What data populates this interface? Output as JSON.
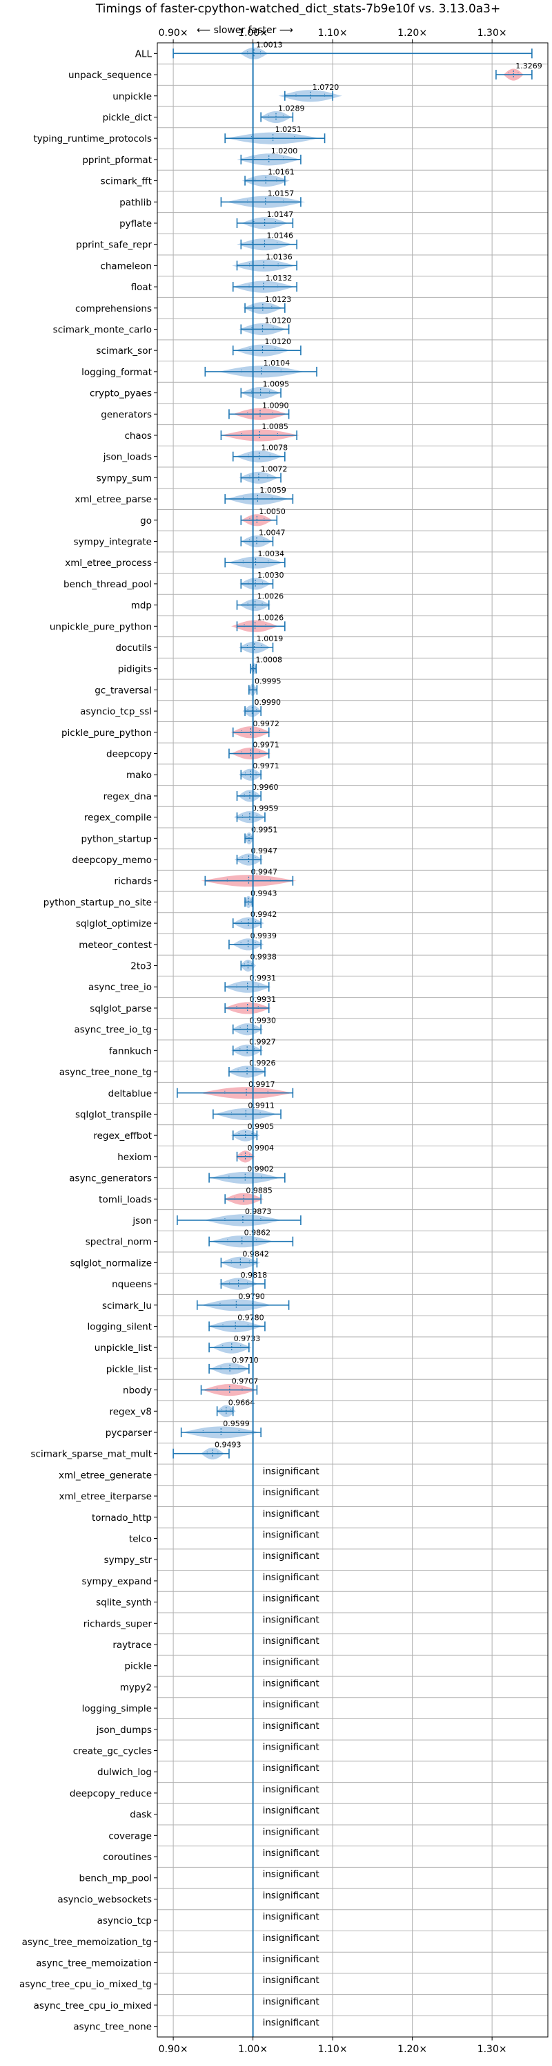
{
  "chart_data": {
    "type": "violin",
    "title": "Timings of faster-cpython-watched_dict_stats-7b9e10f vs. 3.13.0a3+",
    "direction_label": "⟵ slower  faster ⟶",
    "x_ticks": [
      "0.90×",
      "1.00×",
      "1.10×",
      "1.20×",
      "1.30×"
    ],
    "x_tick_values": [
      0.9,
      1.0,
      1.1,
      1.2,
      1.3
    ],
    "xlim": [
      0.88,
      1.37
    ],
    "reference_line": 1.0,
    "insignificant_label": "insignificant",
    "colors": {
      "faster": "#a9c9e8",
      "slower": "#f4a8b0",
      "accent": "#1f77b4"
    },
    "benchmarks": [
      {
        "name": "ALL",
        "value": 1.0013,
        "label": "1.0013",
        "lo": 0.9,
        "hi": 1.35,
        "w": 0.018,
        "color": "faster"
      },
      {
        "name": "unpack_sequence",
        "value": 1.3269,
        "label": "1.3269",
        "lo": 1.305,
        "hi": 1.35,
        "w": 0.013,
        "color": "slower"
      },
      {
        "name": "unpickle",
        "value": 1.072,
        "label": "1.0720",
        "lo": 1.04,
        "hi": 1.1,
        "w": 0.04,
        "color": "faster"
      },
      {
        "name": "pickle_dict",
        "value": 1.0289,
        "label": "1.0289",
        "lo": 1.01,
        "hi": 1.05,
        "w": 0.02,
        "color": "faster"
      },
      {
        "name": "typing_runtime_protocols",
        "value": 1.0251,
        "label": "1.0251",
        "lo": 0.965,
        "hi": 1.09,
        "w": 0.06,
        "color": "faster"
      },
      {
        "name": "pprint_pformat",
        "value": 1.02,
        "label": "1.0200",
        "lo": 0.985,
        "hi": 1.06,
        "w": 0.04,
        "color": "faster"
      },
      {
        "name": "scimark_fft",
        "value": 1.0161,
        "label": "1.0161",
        "lo": 0.99,
        "hi": 1.04,
        "w": 0.03,
        "color": "faster"
      },
      {
        "name": "pathlib",
        "value": 1.0157,
        "label": "1.0157",
        "lo": 0.96,
        "hi": 1.06,
        "w": 0.05,
        "color": "faster"
      },
      {
        "name": "pyflate",
        "value": 1.0147,
        "label": "1.0147",
        "lo": 0.98,
        "hi": 1.05,
        "w": 0.03,
        "color": "faster"
      },
      {
        "name": "pprint_safe_repr",
        "value": 1.0146,
        "label": "1.0146",
        "lo": 0.985,
        "hi": 1.055,
        "w": 0.035,
        "color": "faster"
      },
      {
        "name": "chameleon",
        "value": 1.0136,
        "label": "1.0136",
        "lo": 0.98,
        "hi": 1.055,
        "w": 0.04,
        "color": "faster"
      },
      {
        "name": "float",
        "value": 1.0132,
        "label": "1.0132",
        "lo": 0.975,
        "hi": 1.055,
        "w": 0.04,
        "color": "faster"
      },
      {
        "name": "comprehensions",
        "value": 1.0123,
        "label": "1.0123",
        "lo": 0.99,
        "hi": 1.04,
        "w": 0.025,
        "color": "faster"
      },
      {
        "name": "scimark_monte_carlo",
        "value": 1.012,
        "label": "1.0120",
        "lo": 0.985,
        "hi": 1.045,
        "w": 0.03,
        "color": "faster"
      },
      {
        "name": "scimark_sor",
        "value": 1.012,
        "label": "1.0120",
        "lo": 0.975,
        "hi": 1.06,
        "w": 0.035,
        "color": "faster"
      },
      {
        "name": "logging_format",
        "value": 1.0104,
        "label": "1.0104",
        "lo": 0.94,
        "hi": 1.08,
        "w": 0.055,
        "color": "faster"
      },
      {
        "name": "crypto_pyaes",
        "value": 1.0095,
        "label": "1.0095",
        "lo": 0.985,
        "hi": 1.035,
        "w": 0.025,
        "color": "faster"
      },
      {
        "name": "generators",
        "value": 1.009,
        "label": "1.0090",
        "lo": 0.97,
        "hi": 1.045,
        "w": 0.035,
        "color": "slower"
      },
      {
        "name": "chaos",
        "value": 1.0085,
        "label": "1.0085",
        "lo": 0.96,
        "hi": 1.055,
        "w": 0.05,
        "color": "slower"
      },
      {
        "name": "json_loads",
        "value": 1.0078,
        "label": "1.0078",
        "lo": 0.975,
        "hi": 1.04,
        "w": 0.03,
        "color": "faster"
      },
      {
        "name": "sympy_sum",
        "value": 1.0072,
        "label": "1.0072",
        "lo": 0.985,
        "hi": 1.035,
        "w": 0.025,
        "color": "faster"
      },
      {
        "name": "xml_etree_parse",
        "value": 1.0059,
        "label": "1.0059",
        "lo": 0.965,
        "hi": 1.05,
        "w": 0.04,
        "color": "faster"
      },
      {
        "name": "go",
        "value": 1.005,
        "label": "1.0050",
        "lo": 0.985,
        "hi": 1.03,
        "w": 0.02,
        "color": "slower"
      },
      {
        "name": "sympy_integrate",
        "value": 1.0047,
        "label": "1.0047",
        "lo": 0.985,
        "hi": 1.025,
        "w": 0.02,
        "color": "faster"
      },
      {
        "name": "xml_etree_process",
        "value": 1.0034,
        "label": "1.0034",
        "lo": 0.965,
        "hi": 1.04,
        "w": 0.035,
        "color": "faster"
      },
      {
        "name": "bench_thread_pool",
        "value": 1.003,
        "label": "1.0030",
        "lo": 0.985,
        "hi": 1.025,
        "w": 0.02,
        "color": "faster"
      },
      {
        "name": "mdp",
        "value": 1.0026,
        "label": "1.0026",
        "lo": 0.98,
        "hi": 1.02,
        "w": 0.02,
        "color": "faster"
      },
      {
        "name": "unpickle_pure_python",
        "value": 1.0026,
        "label": "1.0026",
        "lo": 0.98,
        "hi": 1.04,
        "w": 0.03,
        "color": "slower"
      },
      {
        "name": "docutils",
        "value": 1.0019,
        "label": "1.0019",
        "lo": 0.985,
        "hi": 1.025,
        "w": 0.02,
        "color": "faster"
      },
      {
        "name": "pidigits",
        "value": 1.0008,
        "label": "1.0008",
        "lo": 0.997,
        "hi": 1.004,
        "w": 0.004,
        "color": "faster"
      },
      {
        "name": "gc_traversal",
        "value": 0.9995,
        "label": "0.9995",
        "lo": 0.995,
        "hi": 1.005,
        "w": 0.006,
        "color": "faster"
      },
      {
        "name": "asyncio_tcp_ssl",
        "value": 0.999,
        "label": "0.9990",
        "lo": 0.99,
        "hi": 1.01,
        "w": 0.012,
        "color": "faster"
      },
      {
        "name": "pickle_pure_python",
        "value": 0.9972,
        "label": "0.9972",
        "lo": 0.975,
        "hi": 1.02,
        "w": 0.025,
        "color": "slower"
      },
      {
        "name": "deepcopy",
        "value": 0.9971,
        "label": "0.9971",
        "lo": 0.97,
        "hi": 1.02,
        "w": 0.025,
        "color": "slower"
      },
      {
        "name": "mako",
        "value": 0.9971,
        "label": "0.9971",
        "lo": 0.985,
        "hi": 1.01,
        "w": 0.015,
        "color": "faster"
      },
      {
        "name": "regex_dna",
        "value": 0.996,
        "label": "0.9960",
        "lo": 0.98,
        "hi": 1.01,
        "w": 0.015,
        "color": "faster"
      },
      {
        "name": "regex_compile",
        "value": 0.9959,
        "label": "0.9959",
        "lo": 0.98,
        "hi": 1.015,
        "w": 0.02,
        "color": "faster"
      },
      {
        "name": "python_startup",
        "value": 0.9951,
        "label": "0.9951",
        "lo": 0.99,
        "hi": 1.0,
        "w": 0.006,
        "color": "faster"
      },
      {
        "name": "deepcopy_memo",
        "value": 0.9947,
        "label": "0.9947",
        "lo": 0.98,
        "hi": 1.01,
        "w": 0.018,
        "color": "faster"
      },
      {
        "name": "richards",
        "value": 0.9947,
        "label": "0.9947",
        "lo": 0.94,
        "hi": 1.05,
        "w": 0.06,
        "color": "slower"
      },
      {
        "name": "python_startup_no_site",
        "value": 0.9943,
        "label": "0.9943",
        "lo": 0.99,
        "hi": 0.999,
        "w": 0.006,
        "color": "faster"
      },
      {
        "name": "sqlglot_optimize",
        "value": 0.9942,
        "label": "0.9942",
        "lo": 0.975,
        "hi": 1.01,
        "w": 0.02,
        "color": "faster"
      },
      {
        "name": "meteor_contest",
        "value": 0.9939,
        "label": "0.9939",
        "lo": 0.97,
        "hi": 1.01,
        "w": 0.02,
        "color": "faster"
      },
      {
        "name": "2to3",
        "value": 0.9938,
        "label": "0.9938",
        "lo": 0.985,
        "hi": 1.0,
        "w": 0.01,
        "color": "faster"
      },
      {
        "name": "async_tree_io",
        "value": 0.9931,
        "label": "0.9931",
        "lo": 0.965,
        "hi": 1.02,
        "w": 0.03,
        "color": "faster"
      },
      {
        "name": "sqlglot_parse",
        "value": 0.9931,
        "label": "0.9931",
        "lo": 0.965,
        "hi": 1.02,
        "w": 0.03,
        "color": "slower"
      },
      {
        "name": "async_tree_io_tg",
        "value": 0.993,
        "label": "0.9930",
        "lo": 0.975,
        "hi": 1.01,
        "w": 0.02,
        "color": "faster"
      },
      {
        "name": "fannkuch",
        "value": 0.9927,
        "label": "0.9927",
        "lo": 0.975,
        "hi": 1.01,
        "w": 0.02,
        "color": "faster"
      },
      {
        "name": "async_tree_none_tg",
        "value": 0.9926,
        "label": "0.9926",
        "lo": 0.97,
        "hi": 1.015,
        "w": 0.025,
        "color": "faster"
      },
      {
        "name": "deltablue",
        "value": 0.9917,
        "label": "0.9917",
        "lo": 0.905,
        "hi": 1.05,
        "w": 0.06,
        "color": "slower"
      },
      {
        "name": "sqlglot_transpile",
        "value": 0.9911,
        "label": "0.9911",
        "lo": 0.95,
        "hi": 1.035,
        "w": 0.04,
        "color": "faster"
      },
      {
        "name": "regex_effbot",
        "value": 0.9905,
        "label": "0.9905",
        "lo": 0.975,
        "hi": 1.005,
        "w": 0.018,
        "color": "faster"
      },
      {
        "name": "hexiom",
        "value": 0.9904,
        "label": "0.9904",
        "lo": 0.98,
        "hi": 1.0,
        "w": 0.012,
        "color": "slower"
      },
      {
        "name": "async_generators",
        "value": 0.9902,
        "label": "0.9902",
        "lo": 0.945,
        "hi": 1.04,
        "w": 0.045,
        "color": "faster"
      },
      {
        "name": "tomli_loads",
        "value": 0.9885,
        "label": "0.9885",
        "lo": 0.965,
        "hi": 1.01,
        "w": 0.025,
        "color": "slower"
      },
      {
        "name": "json",
        "value": 0.9873,
        "label": "0.9873",
        "lo": 0.905,
        "hi": 1.06,
        "w": 0.05,
        "color": "faster"
      },
      {
        "name": "spectral_norm",
        "value": 0.9862,
        "label": "0.9862",
        "lo": 0.945,
        "hi": 1.05,
        "w": 0.04,
        "color": "faster"
      },
      {
        "name": "sqlglot_normalize",
        "value": 0.9842,
        "label": "0.9842",
        "lo": 0.96,
        "hi": 1.005,
        "w": 0.025,
        "color": "faster"
      },
      {
        "name": "nqueens",
        "value": 0.9818,
        "label": "0.9818",
        "lo": 0.96,
        "hi": 1.015,
        "w": 0.025,
        "color": "faster"
      },
      {
        "name": "scimark_lu",
        "value": 0.979,
        "label": "0.9790",
        "lo": 0.93,
        "hi": 1.045,
        "w": 0.045,
        "color": "faster"
      },
      {
        "name": "logging_silent",
        "value": 0.978,
        "label": "0.9780",
        "lo": 0.945,
        "hi": 1.015,
        "w": 0.035,
        "color": "faster"
      },
      {
        "name": "unpickle_list",
        "value": 0.9733,
        "label": "0.9733",
        "lo": 0.945,
        "hi": 0.995,
        "w": 0.025,
        "color": "faster"
      },
      {
        "name": "pickle_list",
        "value": 0.971,
        "label": "0.9710",
        "lo": 0.945,
        "hi": 0.995,
        "w": 0.025,
        "color": "faster"
      },
      {
        "name": "nbody",
        "value": 0.9707,
        "label": "0.9707",
        "lo": 0.935,
        "hi": 1.005,
        "w": 0.035,
        "color": "slower"
      },
      {
        "name": "regex_v8",
        "value": 0.9664,
        "label": "0.9664",
        "lo": 0.955,
        "hi": 0.975,
        "w": 0.012,
        "color": "faster"
      },
      {
        "name": "pycparser",
        "value": 0.9599,
        "label": "0.9599",
        "lo": 0.91,
        "hi": 1.01,
        "w": 0.05,
        "color": "faster"
      },
      {
        "name": "scimark_sparse_mat_mult",
        "value": 0.9493,
        "label": "0.9493",
        "lo": 0.9,
        "hi": 0.97,
        "w": 0.015,
        "color": "faster"
      },
      {
        "name": "xml_etree_generate",
        "insignificant": true
      },
      {
        "name": "xml_etree_iterparse",
        "insignificant": true
      },
      {
        "name": "tornado_http",
        "insignificant": true
      },
      {
        "name": "telco",
        "insignificant": true
      },
      {
        "name": "sympy_str",
        "insignificant": true
      },
      {
        "name": "sympy_expand",
        "insignificant": true
      },
      {
        "name": "sqlite_synth",
        "insignificant": true
      },
      {
        "name": "richards_super",
        "insignificant": true
      },
      {
        "name": "raytrace",
        "insignificant": true
      },
      {
        "name": "pickle",
        "insignificant": true
      },
      {
        "name": "mypy2",
        "insignificant": true
      },
      {
        "name": "logging_simple",
        "insignificant": true
      },
      {
        "name": "json_dumps",
        "insignificant": true
      },
      {
        "name": "create_gc_cycles",
        "insignificant": true
      },
      {
        "name": "dulwich_log",
        "insignificant": true
      },
      {
        "name": "deepcopy_reduce",
        "insignificant": true
      },
      {
        "name": "dask",
        "insignificant": true
      },
      {
        "name": "coverage",
        "insignificant": true
      },
      {
        "name": "coroutines",
        "insignificant": true
      },
      {
        "name": "bench_mp_pool",
        "insignificant": true
      },
      {
        "name": "asyncio_websockets",
        "insignificant": true
      },
      {
        "name": "asyncio_tcp",
        "insignificant": true
      },
      {
        "name": "async_tree_memoization_tg",
        "insignificant": true
      },
      {
        "name": "async_tree_memoization",
        "insignificant": true
      },
      {
        "name": "async_tree_cpu_io_mixed_tg",
        "insignificant": true
      },
      {
        "name": "async_tree_cpu_io_mixed",
        "insignificant": true
      },
      {
        "name": "async_tree_none",
        "insignificant": true
      }
    ]
  }
}
